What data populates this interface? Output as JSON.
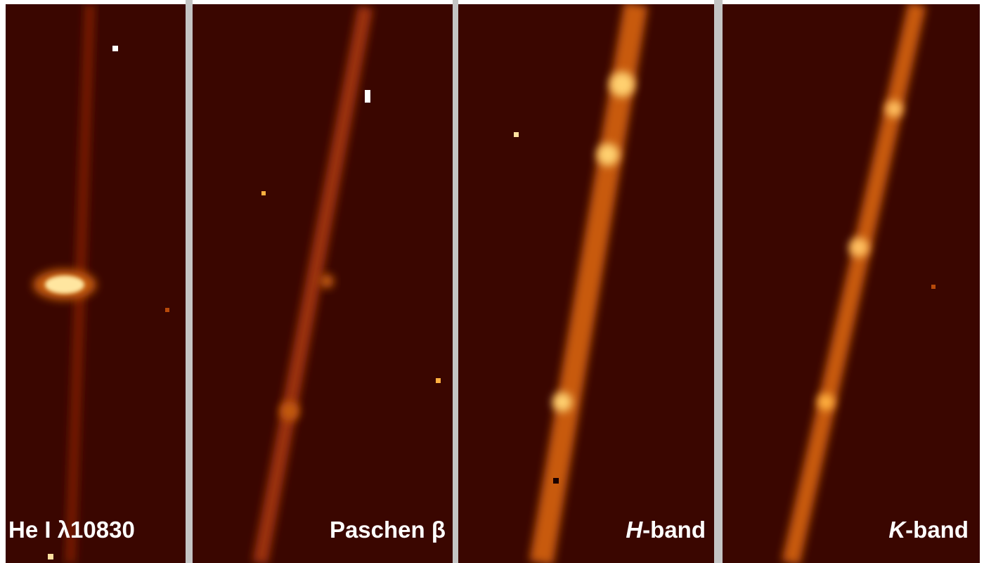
{
  "panels": [
    {
      "label": {
        "text": "He I λ10830"
      }
    },
    {
      "label": {
        "text": "Paschen β"
      }
    },
    {
      "label": {
        "italic": "H",
        "text": "-band"
      }
    },
    {
      "label": {
        "italic": "K",
        "text": "-band"
      }
    }
  ]
}
